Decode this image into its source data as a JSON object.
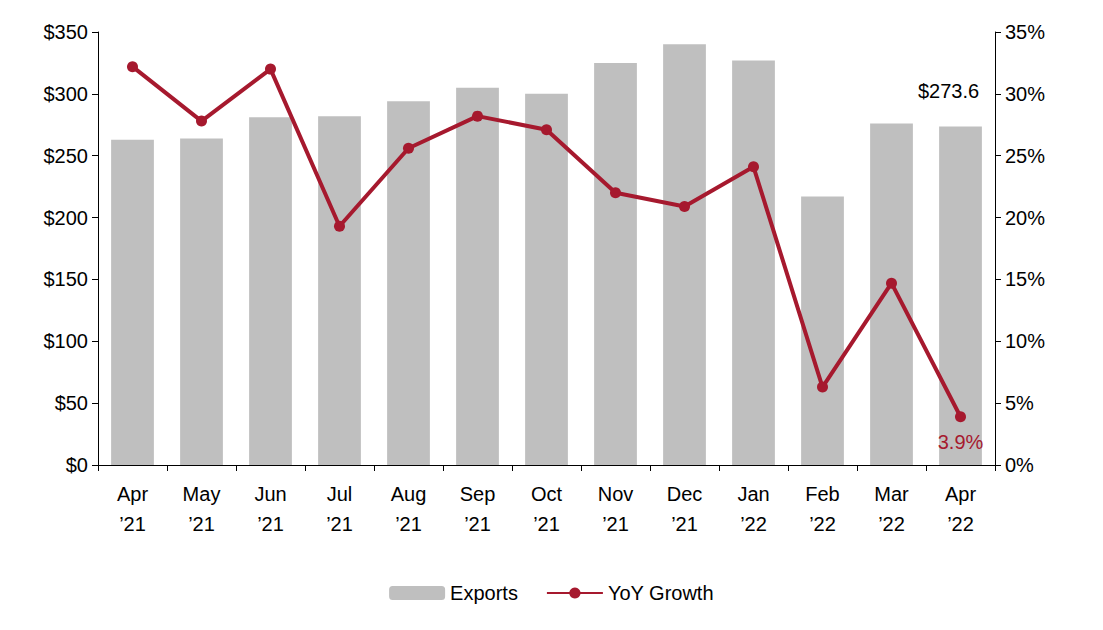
{
  "chart_data": {
    "type": "bar",
    "categories": [
      "Apr\n’21",
      "May\n’21",
      "Jun\n’21",
      "Jul\n’21",
      "Aug\n’21",
      "Sep\n’21",
      "Oct\n’21",
      "Nov\n’21",
      "Dec\n’21",
      "Jan\n’22",
      "Feb\n’22",
      "Mar\n’22",
      "Apr\n’22"
    ],
    "series": [
      {
        "name": "Exports",
        "type": "bar",
        "color": "#bfbfbf",
        "values": [
          263,
          264,
          281,
          282,
          294,
          305,
          300,
          325,
          340,
          327,
          217,
          276,
          273.6
        ]
      },
      {
        "name": "YoY Growth",
        "type": "line",
        "axis": "y2",
        "color": "#a6192e",
        "marker": "circle",
        "values": [
          32.2,
          27.8,
          32.0,
          19.3,
          25.6,
          28.2,
          27.1,
          22.0,
          20.9,
          24.1,
          6.3,
          14.7,
          3.9
        ]
      }
    ],
    "annotations": [
      {
        "series": "Exports",
        "index": 12,
        "text": "$273.6"
      },
      {
        "series": "YoY Growth",
        "index": 12,
        "text": "3.9%"
      }
    ],
    "ylim": [
      0,
      350
    ],
    "yticks": [
      {
        "value": 0,
        "label": "$0"
      },
      {
        "value": 50,
        "label": "$50"
      },
      {
        "value": 100,
        "label": "$100"
      },
      {
        "value": 150,
        "label": "$150"
      },
      {
        "value": 200,
        "label": "$200"
      },
      {
        "value": 250,
        "label": "$250"
      },
      {
        "value": 300,
        "label": "$300"
      },
      {
        "value": 350,
        "label": "$350"
      }
    ],
    "y2lim": [
      0,
      35
    ],
    "y2ticks": [
      {
        "value": 0,
        "label": "0%"
      },
      {
        "value": 5,
        "label": "5%"
      },
      {
        "value": 10,
        "label": "10%"
      },
      {
        "value": 15,
        "label": "15%"
      },
      {
        "value": 20,
        "label": "20%"
      },
      {
        "value": 25,
        "label": "25%"
      },
      {
        "value": 30,
        "label": "30%"
      },
      {
        "value": 35,
        "label": "35%"
      }
    ],
    "grid": false,
    "legend": "bottom"
  }
}
